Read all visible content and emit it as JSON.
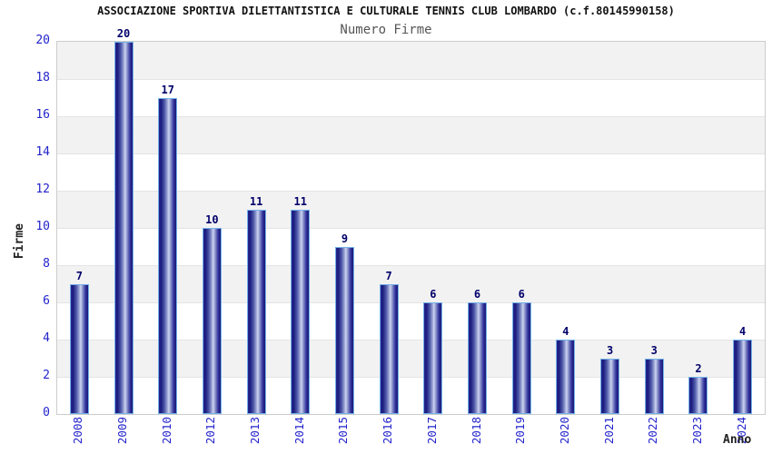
{
  "header": {
    "title": "ASSOCIAZIONE SPORTIVA DILETTANTISTICA E CULTURALE TENNIS CLUB LOMBARDO (c.f.80145990158)",
    "subtitle": "Numero Firme"
  },
  "chart_data": {
    "type": "bar",
    "title": "ASSOCIAZIONE SPORTIVA DILETTANTISTICA E CULTURALE TENNIS CLUB LOMBARDO (c.f.80145990158)",
    "subtitle": "Numero Firme",
    "xlabel": "Anno",
    "ylabel": "Firme",
    "categories": [
      "2008",
      "2009",
      "2010",
      "2012",
      "2013",
      "2014",
      "2015",
      "2016",
      "2017",
      "2018",
      "2019",
      "2020",
      "2021",
      "2022",
      "2023",
      "2024"
    ],
    "values": [
      7,
      20,
      17,
      10,
      11,
      11,
      9,
      7,
      6,
      6,
      6,
      4,
      3,
      3,
      2,
      4
    ],
    "ylim": [
      0,
      20
    ],
    "yticks": [
      0,
      2,
      4,
      6,
      8,
      10,
      12,
      14,
      16,
      18,
      20
    ],
    "grid": "horizontal-bands",
    "legend": "none",
    "colors": {
      "bar_dark": "#1b1b7e",
      "bar_light": "#cdd3f0",
      "bar_border": "#74b2e8",
      "axis_tick_label": "#2323cc",
      "value_label": "#00006b",
      "band_gray": "#f2f2f2",
      "band_white": "#ffffff",
      "plot_border": "#cccccc",
      "title_color": "#111111",
      "subtitle_color": "#555555"
    }
  }
}
